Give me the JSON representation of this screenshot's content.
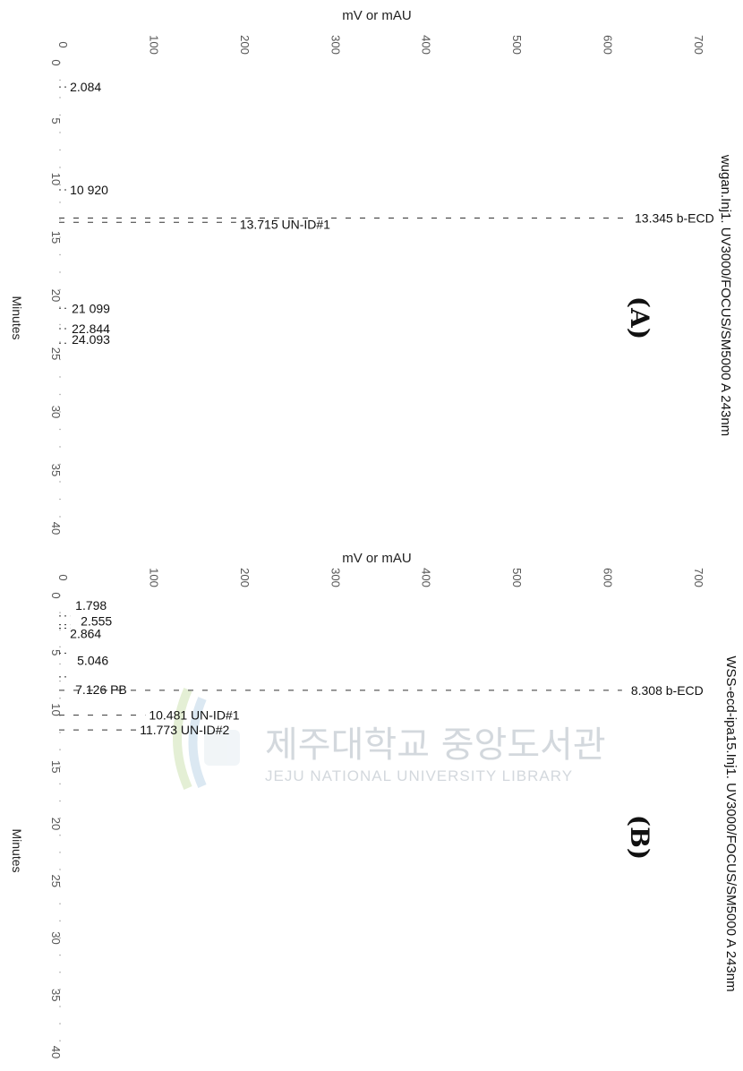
{
  "watermark": {
    "korean": "제주대학교 중앙도서관",
    "english": "JEJU NATIONAL UNIVERSITY  LIBRARY",
    "seal_text": "JEJU"
  },
  "chart_data": [
    {
      "type": "line",
      "panel": "(A)",
      "side_label": "wugan.Inj1. UV3000/FOCUS/SM5000 A 243nm",
      "xlabel": "Minutes",
      "ylabel": "mV or mAU",
      "xlim": [
        0,
        40
      ],
      "ylim": [
        0,
        700
      ],
      "x_ticks": [
        "0",
        "5",
        "10",
        "15",
        "20",
        "25",
        "30",
        "35",
        "40"
      ],
      "y_ticks": [
        "0",
        "100",
        "200",
        "300",
        "400",
        "500",
        "600",
        "700"
      ],
      "peaks": [
        {
          "time": 2.084,
          "height": 8,
          "label": "2.084"
        },
        {
          "time": 10.92,
          "height": 8,
          "label": "10 920"
        },
        {
          "time": 13.715,
          "height": 195,
          "label": "13.715 UN-ID#1"
        },
        {
          "time": 13.345,
          "height": 630,
          "label": "13.345 b-ECD"
        },
        {
          "time": 21.099,
          "height": 10,
          "label": "21 099"
        },
        {
          "time": 22.844,
          "height": 10,
          "label": "22.844"
        },
        {
          "time": 24.093,
          "height": 10,
          "label": "24.093"
        }
      ]
    },
    {
      "type": "line",
      "panel": "(B)",
      "side_label": "WSS-ecd-ipa15.Inj1. UV3000/FOCUS/SM5000 A 243nm",
      "xlabel": "Minutes",
      "ylabel": "mV or mAU",
      "xlim": [
        0,
        40
      ],
      "ylim": [
        0,
        700
      ],
      "x_ticks": [
        "0",
        "5",
        "10",
        "15",
        "20",
        "25",
        "30",
        "35",
        "40"
      ],
      "y_ticks": [
        "0",
        "100",
        "200",
        "300",
        "400",
        "500",
        "600",
        "700"
      ],
      "peaks": [
        {
          "time": 1.798,
          "height": 12,
          "label": "1.798"
        },
        {
          "time": 2.555,
          "height": 12,
          "label": "2.555"
        },
        {
          "time": 2.864,
          "height": 12,
          "label": "2.864"
        },
        {
          "time": 5.046,
          "height": 10,
          "label": "5.046"
        },
        {
          "time": 7.126,
          "height": 10,
          "label": "7.126 PB"
        },
        {
          "time": 8.308,
          "height": 620,
          "label": "8.308 b-ECD"
        },
        {
          "time": 10.481,
          "height": 95,
          "label": "10.481 UN-ID#1"
        },
        {
          "time": 11.773,
          "height": 85,
          "label": "11.773 UN-ID#2"
        }
      ]
    }
  ]
}
